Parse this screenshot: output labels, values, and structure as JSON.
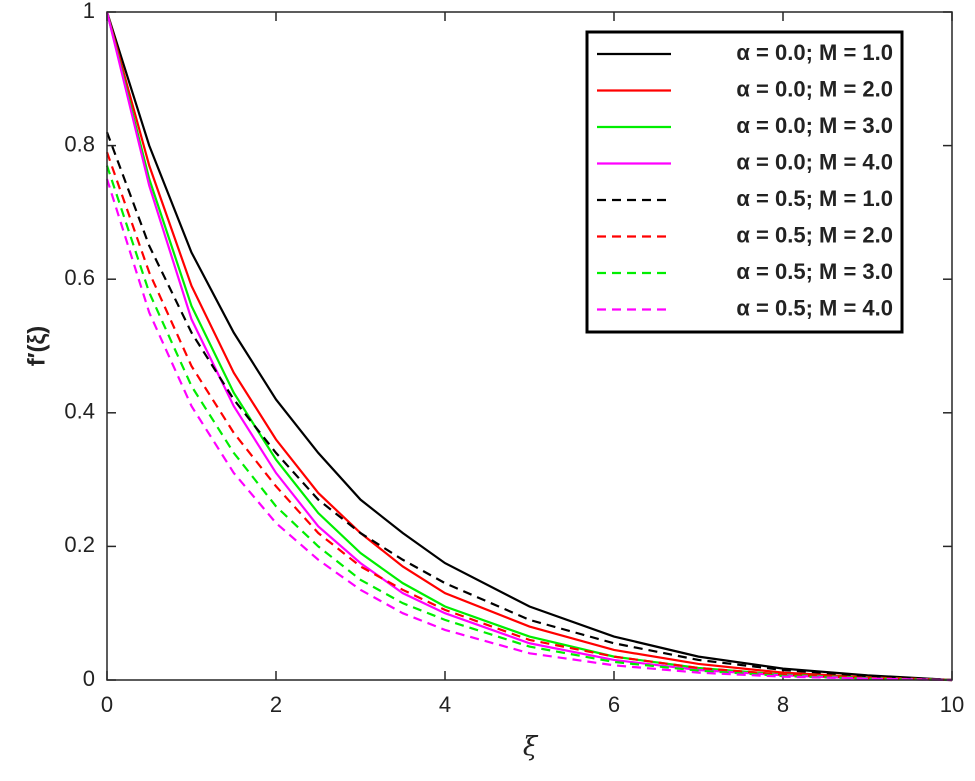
{
  "chart_data": {
    "type": "line",
    "x_label": "ξ",
    "y_label": "f′(ξ)",
    "x": [
      0,
      0.5,
      1,
      1.5,
      2,
      2.5,
      3,
      3.5,
      4,
      5,
      6,
      7,
      8,
      9,
      10
    ],
    "series": [
      {
        "name": "α = 0.0; M = 1.0",
        "color": "#000000",
        "dashed": false,
        "values": [
          1,
          0.8,
          0.64,
          0.52,
          0.42,
          0.34,
          0.27,
          0.22,
          0.175,
          0.11,
          0.065,
          0.035,
          0.017,
          0.007,
          0
        ]
      },
      {
        "name": "α = 0.0; M = 2.0",
        "color": "#ff0000",
        "dashed": false,
        "values": [
          1,
          0.77,
          0.59,
          0.46,
          0.36,
          0.28,
          0.22,
          0.17,
          0.13,
          0.08,
          0.045,
          0.024,
          0.011,
          0.004,
          0
        ]
      },
      {
        "name": "α = 0.0; M = 3.0",
        "color": "#00ee00",
        "dashed": false,
        "values": [
          1,
          0.75,
          0.56,
          0.43,
          0.33,
          0.25,
          0.19,
          0.145,
          0.11,
          0.065,
          0.035,
          0.018,
          0.008,
          0.003,
          0
        ]
      },
      {
        "name": "α = 0.0; M = 4.0",
        "color": "#ff00ff",
        "dashed": false,
        "values": [
          1,
          0.74,
          0.54,
          0.41,
          0.31,
          0.23,
          0.175,
          0.13,
          0.1,
          0.055,
          0.03,
          0.015,
          0.007,
          0.002,
          0
        ]
      },
      {
        "name": "α = 0.5; M = 1.0",
        "color": "#000000",
        "dashed": true,
        "values": [
          0.82,
          0.65,
          0.52,
          0.42,
          0.34,
          0.27,
          0.22,
          0.18,
          0.145,
          0.09,
          0.055,
          0.03,
          0.015,
          0.006,
          0
        ]
      },
      {
        "name": "α = 0.5; M = 2.0",
        "color": "#ff0000",
        "dashed": true,
        "values": [
          0.79,
          0.61,
          0.47,
          0.37,
          0.29,
          0.22,
          0.17,
          0.135,
          0.105,
          0.06,
          0.035,
          0.018,
          0.008,
          0.003,
          0
        ]
      },
      {
        "name": "α = 0.5; M = 3.0",
        "color": "#00ee00",
        "dashed": true,
        "values": [
          0.77,
          0.58,
          0.44,
          0.34,
          0.26,
          0.2,
          0.15,
          0.115,
          0.09,
          0.05,
          0.027,
          0.014,
          0.006,
          0.002,
          0
        ]
      },
      {
        "name": "α = 0.5; M = 4.0",
        "color": "#ff00ff",
        "dashed": true,
        "values": [
          0.75,
          0.55,
          0.41,
          0.31,
          0.235,
          0.18,
          0.135,
          0.1,
          0.075,
          0.04,
          0.022,
          0.011,
          0.005,
          0.002,
          0
        ]
      }
    ],
    "xlim": [
      0,
      10
    ],
    "xticks": [
      0,
      2,
      4,
      6,
      8,
      10
    ],
    "ylim": [
      0,
      1
    ],
    "yticks": [
      0,
      0.2,
      0.4,
      0.6,
      0.8,
      1
    ],
    "grid": false,
    "legend": "top-right"
  }
}
